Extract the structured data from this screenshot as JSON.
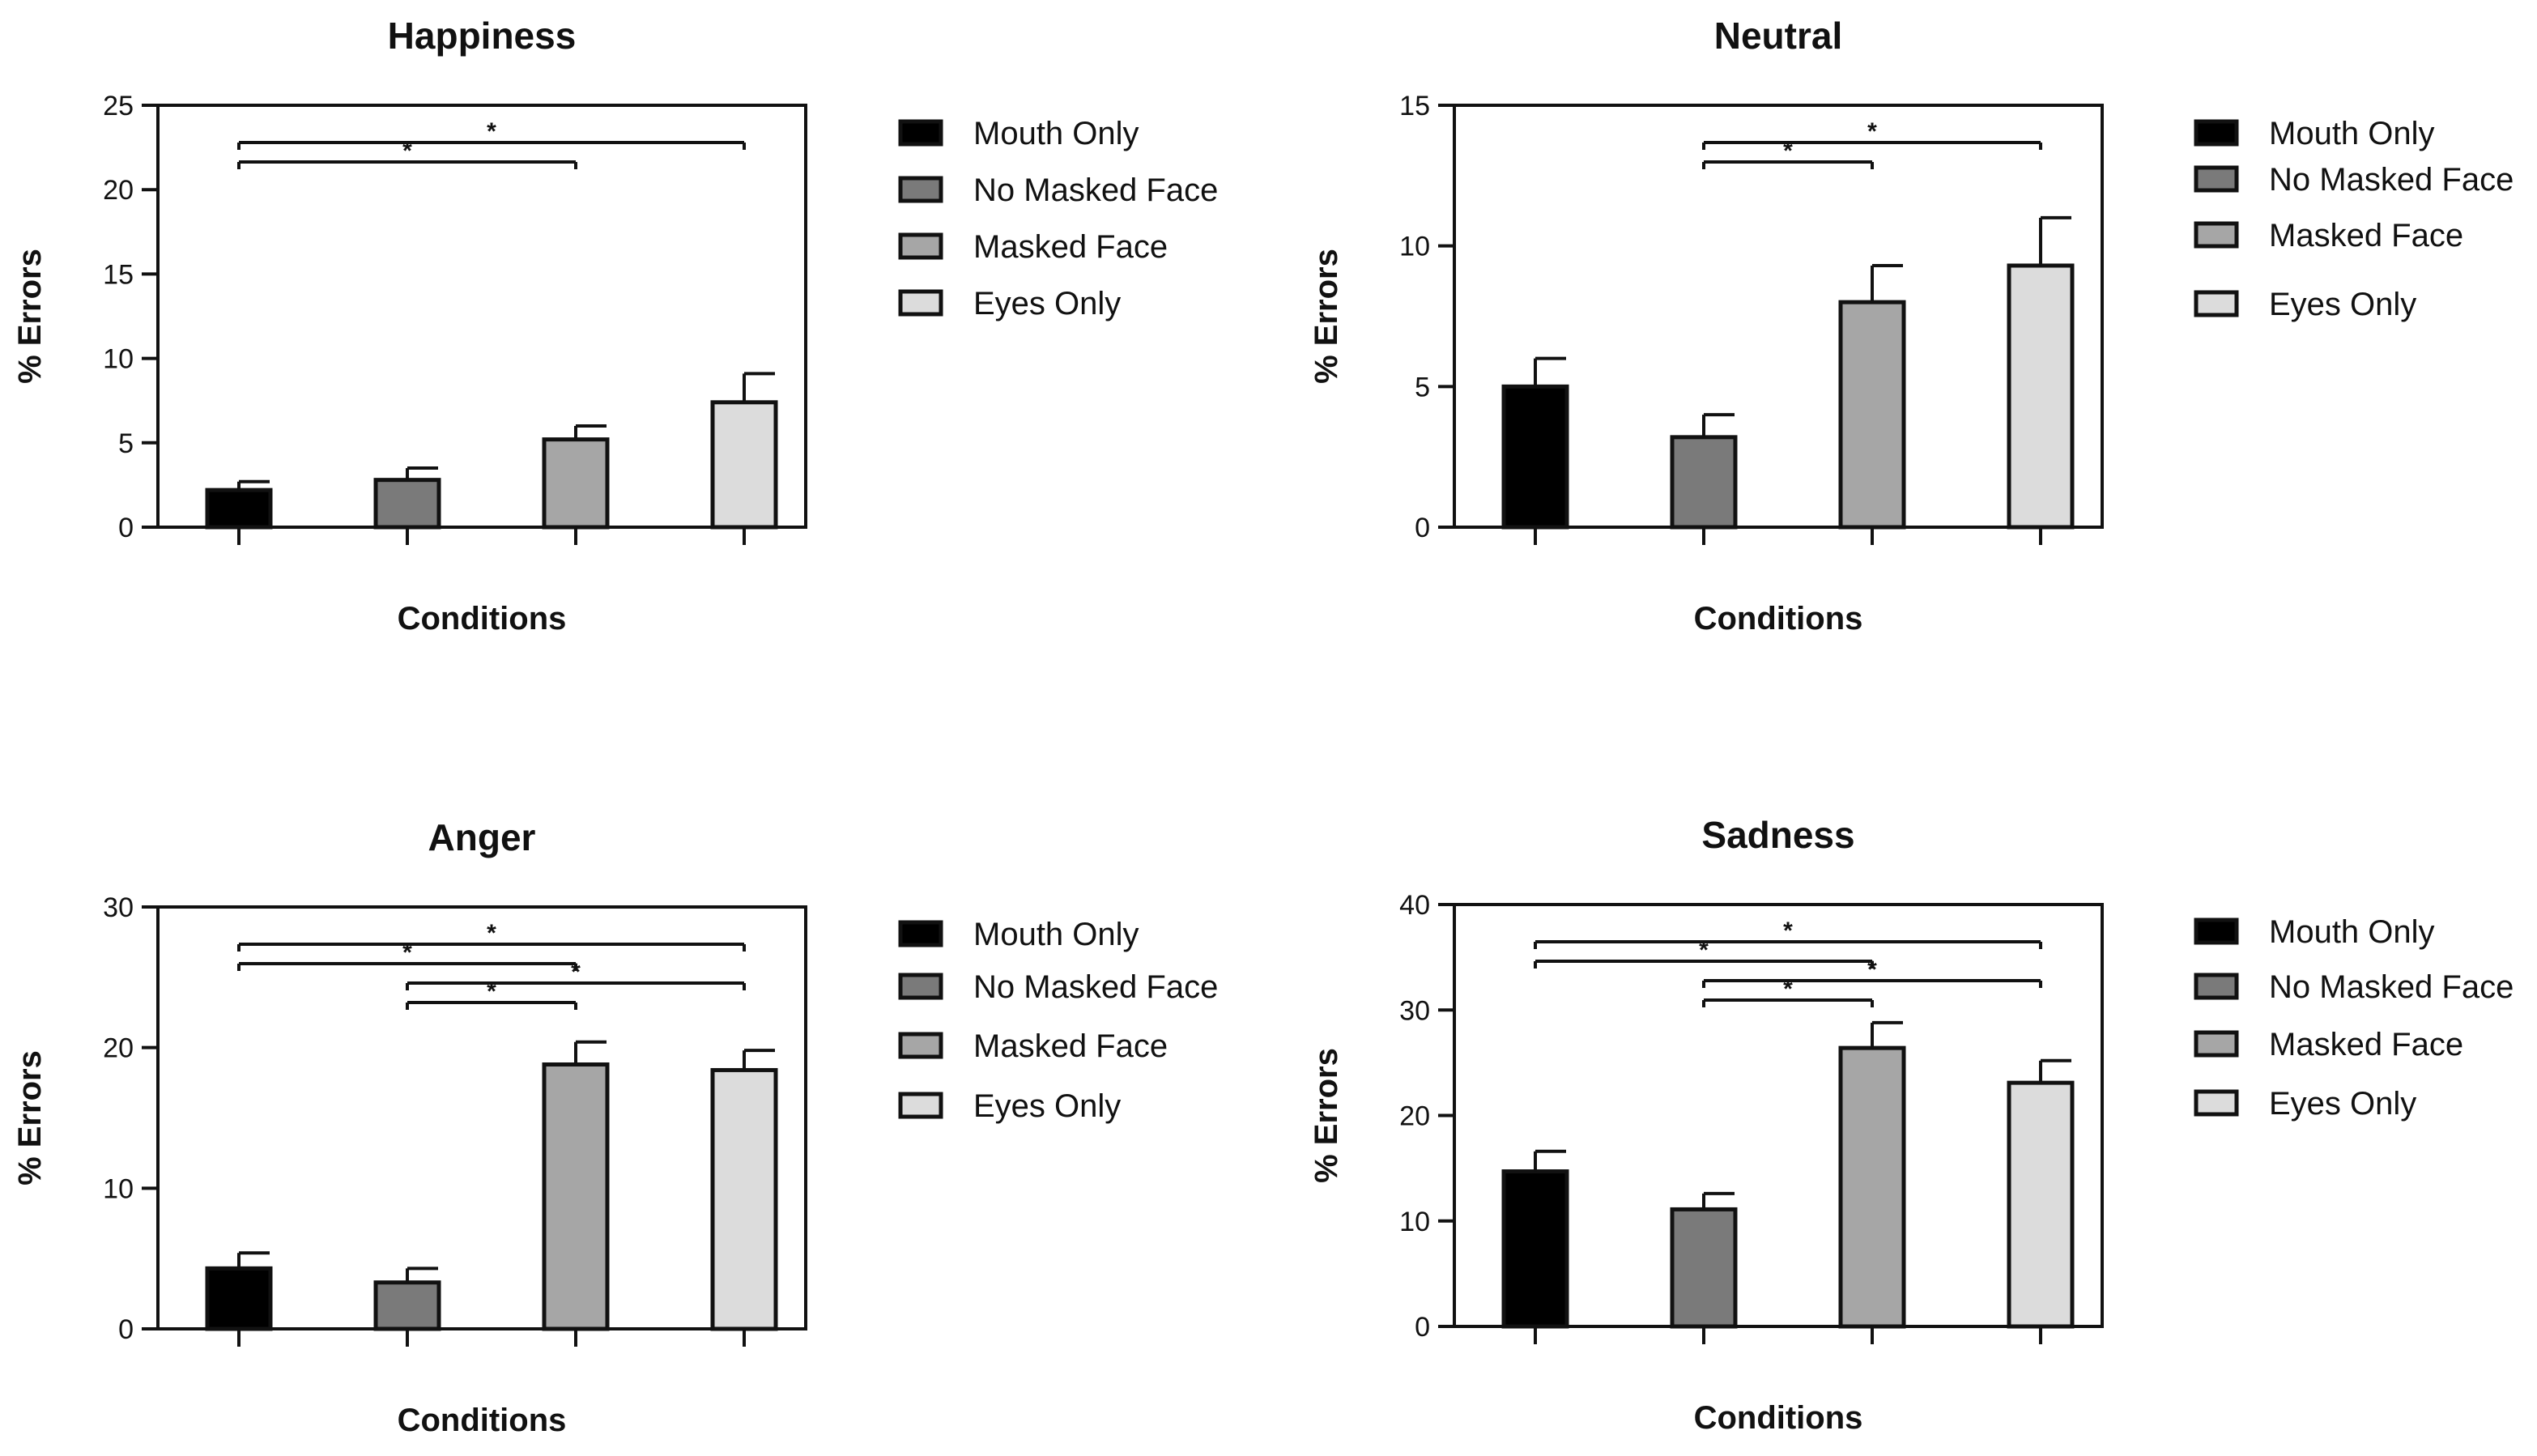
{
  "chart_data": [
    {
      "type": "bar",
      "title": "Happiness",
      "xlabel": "Conditions",
      "ylabel": "% Errors",
      "ylim": [
        0,
        25
      ],
      "yticks": [
        0,
        5,
        10,
        15,
        20,
        25
      ],
      "categories": [
        "Mouth Only",
        "No Masked Face",
        "Masked Face",
        "Eyes Only"
      ],
      "values": [
        2.2,
        2.8,
        5.2,
        7.4
      ],
      "errors": [
        0.5,
        0.7,
        0.8,
        1.7
      ],
      "significance": [
        {
          "from": 0,
          "to": 2,
          "label": "*"
        },
        {
          "from": 0,
          "to": 3,
          "label": "*"
        }
      ],
      "grid": false,
      "legend": "right"
    },
    {
      "type": "bar",
      "title": "Neutral",
      "xlabel": "Conditions",
      "ylabel": "% Errors",
      "ylim": [
        0,
        15
      ],
      "yticks": [
        0,
        5,
        10,
        15
      ],
      "categories": [
        "Mouth Only",
        "No Masked Face",
        "Masked Face",
        "Eyes Only"
      ],
      "values": [
        5.0,
        3.2,
        8.0,
        9.3
      ],
      "errors": [
        1.0,
        0.8,
        1.3,
        1.7
      ],
      "significance": [
        {
          "from": 1,
          "to": 2,
          "label": "*"
        },
        {
          "from": 1,
          "to": 3,
          "label": "*"
        }
      ],
      "grid": false,
      "legend": "right"
    },
    {
      "type": "bar",
      "title": "Anger",
      "xlabel": "Conditions",
      "ylabel": "% Errors",
      "ylim": [
        0,
        30
      ],
      "yticks": [
        0,
        10,
        20,
        30
      ],
      "categories": [
        "Mouth Only",
        "No Masked Face",
        "Masked Face",
        "Eyes Only"
      ],
      "values": [
        4.3,
        3.3,
        18.8,
        18.4
      ],
      "errors": [
        1.1,
        1.0,
        1.6,
        1.4
      ],
      "significance": [
        {
          "from": 0,
          "to": 2,
          "label": "*"
        },
        {
          "from": 0,
          "to": 3,
          "label": "*"
        },
        {
          "from": 1,
          "to": 2,
          "label": "*"
        },
        {
          "from": 1,
          "to": 3,
          "label": "*"
        }
      ],
      "grid": false,
      "legend": "right"
    },
    {
      "type": "bar",
      "title": "Sadness",
      "xlabel": "Conditions",
      "ylabel": "% Errors",
      "ylim": [
        0,
        40
      ],
      "yticks": [
        0,
        10,
        20,
        30,
        40
      ],
      "categories": [
        "Mouth Only",
        "No Masked Face",
        "Masked Face",
        "Eyes Only"
      ],
      "values": [
        14.7,
        11.1,
        26.4,
        23.1
      ],
      "errors": [
        1.9,
        1.5,
        2.4,
        2.1
      ],
      "significance": [
        {
          "from": 0,
          "to": 2,
          "label": "*"
        },
        {
          "from": 0,
          "to": 3,
          "label": "*"
        },
        {
          "from": 1,
          "to": 2,
          "label": "*"
        },
        {
          "from": 1,
          "to": 3,
          "label": "*"
        }
      ],
      "grid": false,
      "legend": "right"
    }
  ],
  "colors": {
    "mouth_only": "#000000",
    "no_masked_face": "#7a7a7a",
    "masked_face": "#a6a6a6",
    "eyes_only": "#dcdcdc",
    "outline": "#111111"
  }
}
